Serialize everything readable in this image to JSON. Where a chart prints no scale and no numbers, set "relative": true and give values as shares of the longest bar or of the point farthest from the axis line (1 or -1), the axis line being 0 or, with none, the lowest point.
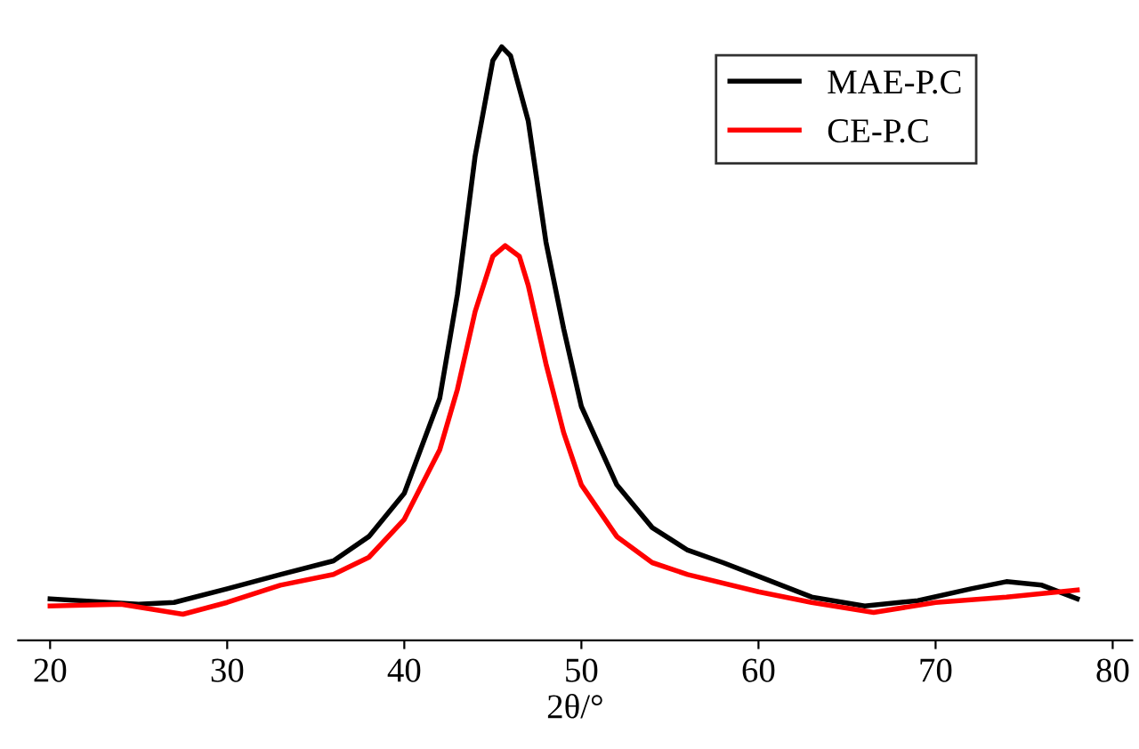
{
  "chart_data": {
    "type": "line",
    "relative": true,
    "xlabel": "2θ/°",
    "xlim": [
      18.2,
      81.1
    ],
    "xticks": [
      20,
      30,
      40,
      50,
      60,
      70,
      80
    ],
    "legend": "top right",
    "grid": false,
    "marker": "none",
    "line_style": "solid",
    "series": [
      {
        "name": "MAE-P.C",
        "color": "#000000",
        "x": [
          20,
          25,
          27,
          30,
          33,
          36,
          38,
          40,
          42,
          43,
          44,
          45,
          45.5,
          46,
          47,
          48,
          49,
          50,
          52,
          54,
          56,
          58,
          60,
          63,
          66,
          69,
          72,
          74,
          76,
          78
        ],
        "values": [
          0.07,
          0.061,
          0.064,
          0.087,
          0.111,
          0.134,
          0.175,
          0.248,
          0.408,
          0.583,
          0.816,
          0.977,
          1,
          0.985,
          0.875,
          0.671,
          0.525,
          0.394,
          0.262,
          0.19,
          0.152,
          0.131,
          0.108,
          0.073,
          0.058,
          0.067,
          0.087,
          0.099,
          0.093,
          0.07
        ]
      },
      {
        "name": "CE-P.C",
        "color": "#ff0000",
        "x": [
          20,
          24,
          27.5,
          30,
          33,
          36,
          38,
          40,
          42,
          43,
          44,
          45,
          45.7,
          46.5,
          47,
          48,
          49,
          50,
          52,
          54,
          56,
          60,
          63,
          66.5,
          70,
          74,
          78
        ],
        "values": [
          0.058,
          0.061,
          0.044,
          0.064,
          0.093,
          0.111,
          0.14,
          0.204,
          0.321,
          0.423,
          0.554,
          0.647,
          0.665,
          0.647,
          0.598,
          0.466,
          0.35,
          0.262,
          0.175,
          0.131,
          0.111,
          0.082,
          0.064,
          0.047,
          0.064,
          0.073,
          0.085
        ]
      }
    ]
  }
}
